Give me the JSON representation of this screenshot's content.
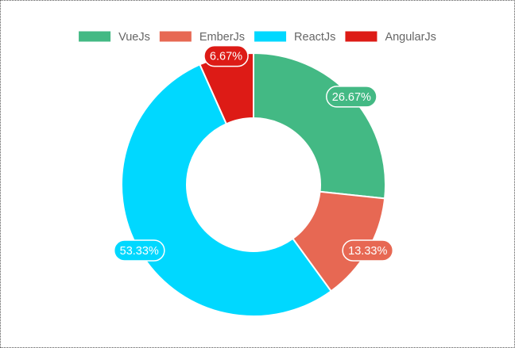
{
  "chart_data": {
    "type": "doughnut",
    "title": "",
    "categories": [
      "VueJs",
      "EmberJs",
      "ReactJs",
      "AngularJs"
    ],
    "values": [
      26.67,
      13.33,
      53.33,
      6.67
    ],
    "labels": [
      "26.67%",
      "13.33%",
      "53.33%",
      "6.67%"
    ],
    "colors": [
      "#43b984",
      "#e76853",
      "#00d8ff",
      "#dd1b16"
    ],
    "legend": "top"
  }
}
